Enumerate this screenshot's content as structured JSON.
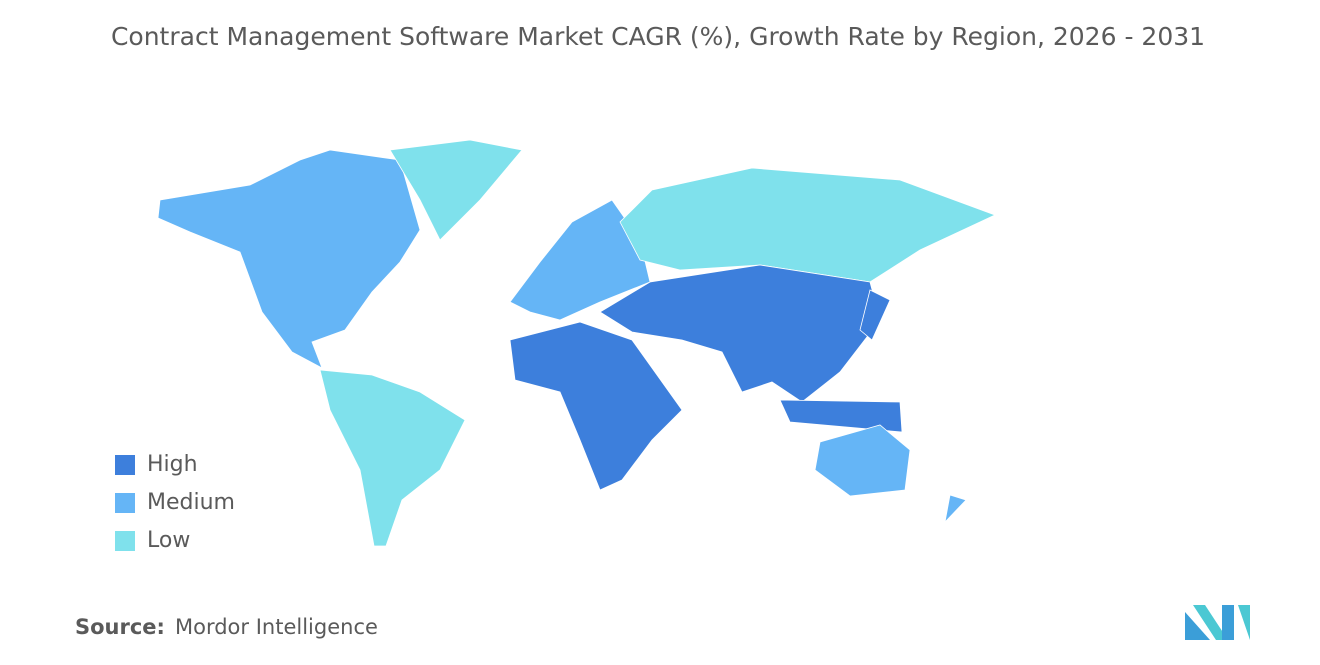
{
  "title": "Contract Management Software Market CAGR (%), Growth Rate by Region, 2026 - 2031",
  "legend": [
    {
      "label": "High",
      "color": "#3d7fdc"
    },
    {
      "label": "Medium",
      "color": "#65b5f6"
    },
    {
      "label": "Low",
      "color": "#7fe1ec"
    }
  ],
  "source": {
    "label": "Source:",
    "text": "Mordor Intelligence"
  }
}
